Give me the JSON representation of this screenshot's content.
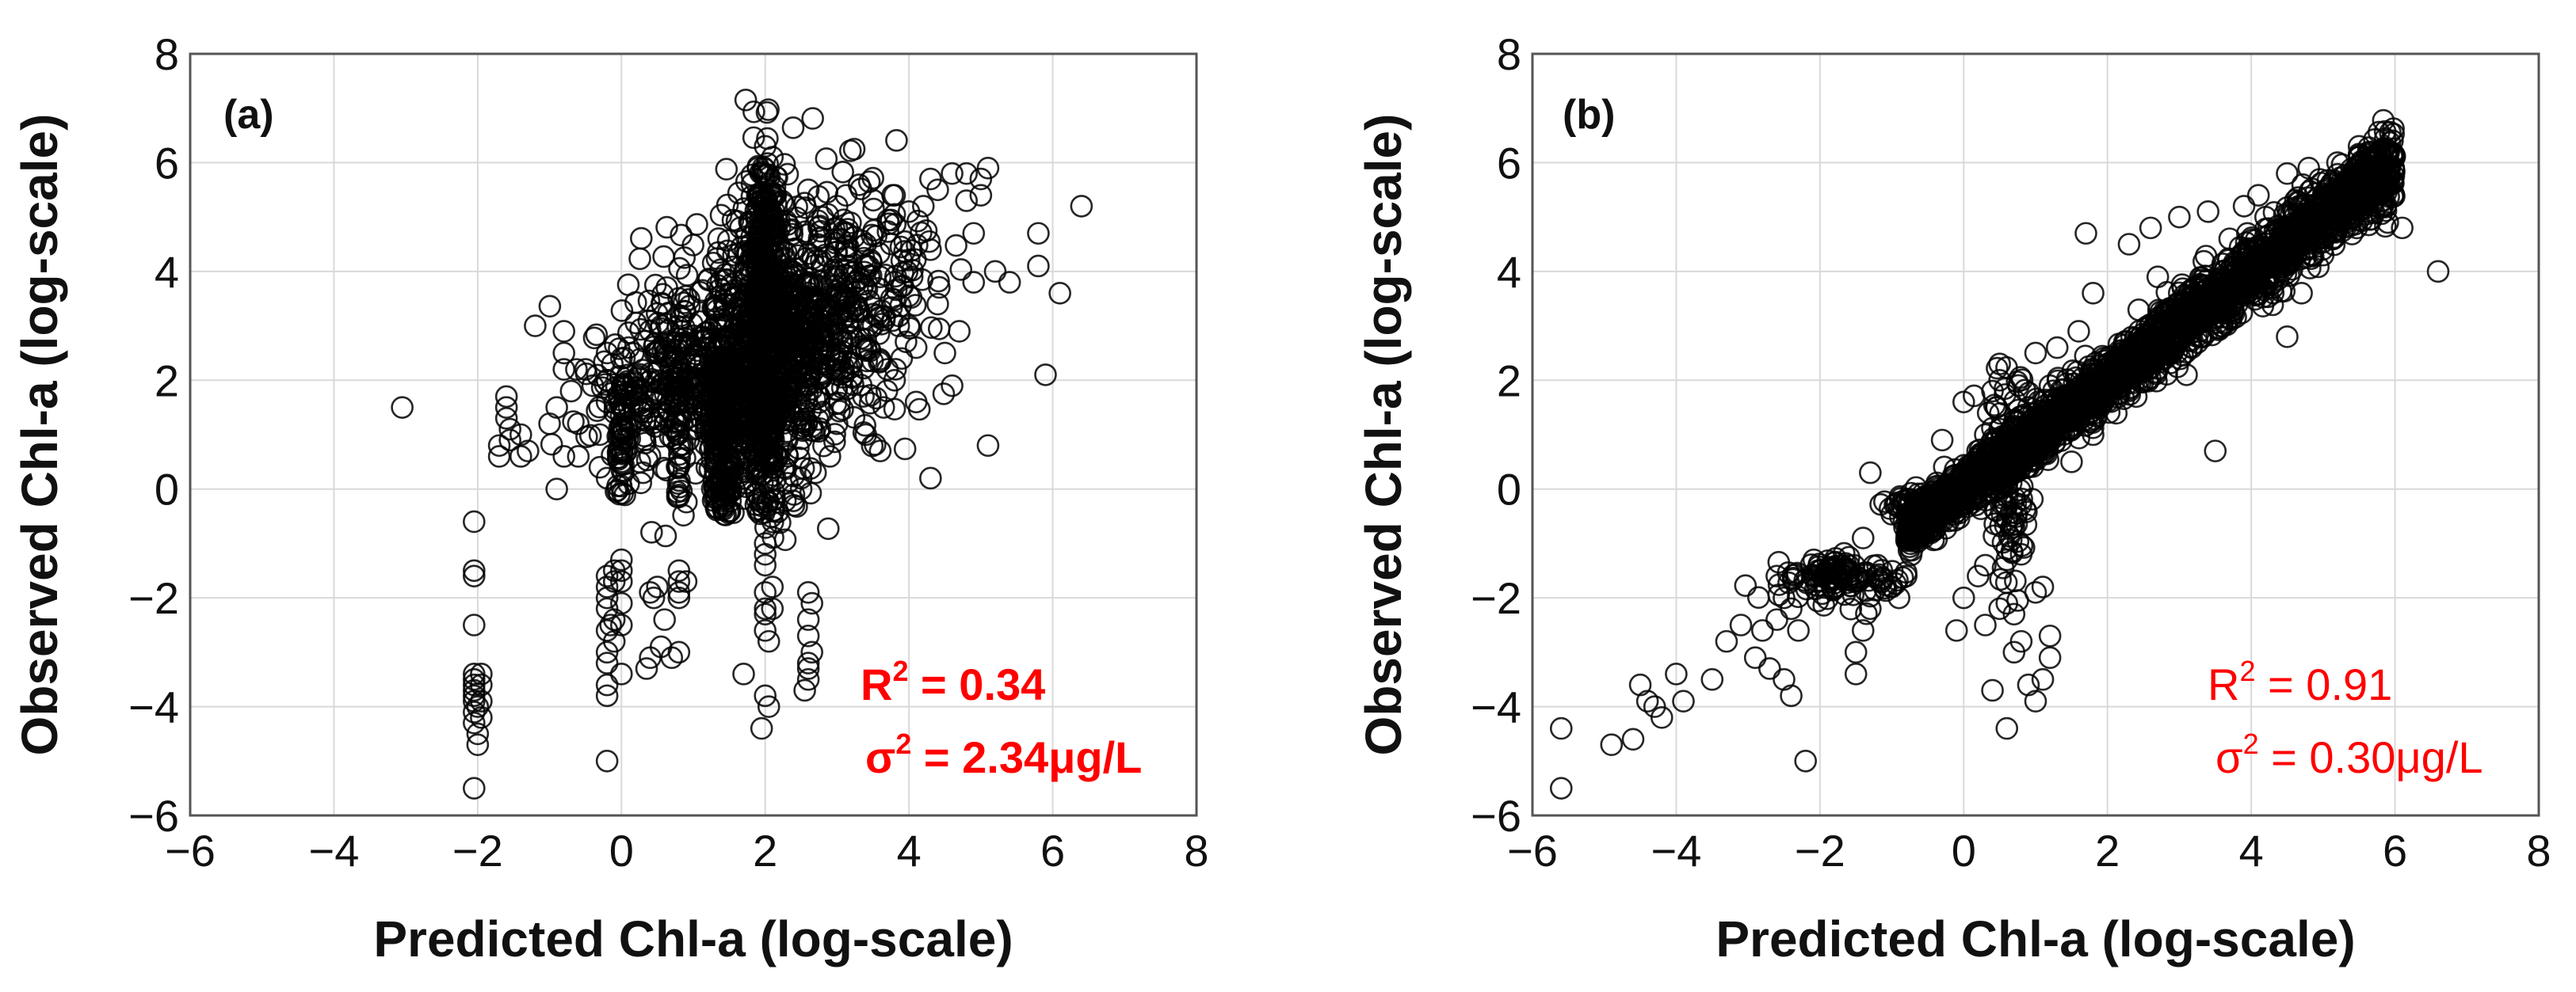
{
  "chart_data": [
    {
      "type": "scatter",
      "panel_label": "(a)",
      "xlabel": "Predicted Chl-a (log-scale)",
      "ylabel": "Observed Chl-a (log-scale)",
      "xlim": [
        -6,
        8
      ],
      "ylim": [
        -6,
        8
      ],
      "xticks": [
        -6,
        -4,
        -2,
        0,
        2,
        4,
        6,
        8
      ],
      "yticks": [
        -6,
        -4,
        -2,
        0,
        2,
        4,
        6,
        8
      ],
      "grid": true,
      "marker": "open-circle",
      "r2_label": "R",
      "r2_value": " = 0.34",
      "sigma_label": "σ",
      "sigma_value": " = 2.34μg/L",
      "sup": "2",
      "annotation_style": "bold",
      "annotation_color": "#ff0000",
      "approx_point_count": 4000,
      "points": [
        [
          -3.05,
          1.5
        ],
        [
          -2.05,
          -0.6
        ],
        [
          -2.05,
          -1.5
        ],
        [
          -2.05,
          -1.6
        ],
        [
          -2.05,
          -2.5
        ],
        [
          -2.05,
          -3.4
        ],
        [
          -2.05,
          -3.6
        ],
        [
          -2.05,
          -3.8
        ],
        [
          -2.0,
          -4.0
        ],
        [
          -2.05,
          -4.3
        ],
        [
          -2.0,
          -4.5
        ],
        [
          -2.0,
          -4.7
        ],
        [
          -2.05,
          -5.5
        ],
        [
          -2.05,
          -4.1
        ],
        [
          -2.05,
          -3.9
        ],
        [
          -2.05,
          -3.7
        ],
        [
          -2.05,
          -3.5
        ],
        [
          -1.95,
          -4.2
        ],
        [
          -1.95,
          -3.9
        ],
        [
          -1.95,
          -3.6
        ],
        [
          -1.95,
          -3.4
        ],
        [
          -1.6,
          1.7
        ],
        [
          -1.6,
          1.5
        ],
        [
          -1.6,
          1.3
        ],
        [
          -1.55,
          1.1
        ],
        [
          -1.55,
          0.9
        ],
        [
          -1.7,
          0.6
        ],
        [
          -1.7,
          0.8
        ],
        [
          -1.4,
          0.6
        ],
        [
          -1.3,
          0.7
        ],
        [
          -1.4,
          1.0
        ],
        [
          -1.0,
          1.2
        ],
        [
          -0.9,
          1.5
        ],
        [
          -0.8,
          2.2
        ],
        [
          -0.8,
          2.5
        ],
        [
          -0.8,
          2.9
        ],
        [
          -0.7,
          1.8
        ],
        [
          -0.6,
          1.2
        ],
        [
          -0.9,
          0.0
        ],
        [
          -0.8,
          0.6
        ],
        [
          -0.6,
          0.6
        ],
        [
          -1.2,
          3.0
        ],
        [
          -0.5,
          2.2
        ],
        [
          -0.4,
          1.9
        ],
        [
          -0.2,
          2.5
        ],
        [
          -0.2,
          2.0
        ],
        [
          -0.2,
          1.6
        ],
        [
          -0.3,
          1.0
        ],
        [
          -0.3,
          0.4
        ],
        [
          0.0,
          2.4
        ],
        [
          0.0,
          1.0
        ],
        [
          0.0,
          0.5
        ],
        [
          0.1,
          2.6
        ],
        [
          0.2,
          1.6
        ],
        [
          0.3,
          0.3
        ],
        [
          0.4,
          1.3
        ],
        [
          0.1,
          0.1
        ],
        [
          -0.2,
          0.2
        ],
        [
          -0.2,
          -1.6
        ],
        [
          -0.2,
          -1.8
        ],
        [
          -0.2,
          -2.0
        ],
        [
          -0.2,
          -2.2
        ],
        [
          -0.15,
          -2.5
        ],
        [
          -0.2,
          -2.6
        ],
        [
          -0.2,
          -3.0
        ],
        [
          -0.2,
          -3.2
        ],
        [
          -0.2,
          -3.6
        ],
        [
          -0.2,
          -3.8
        ],
        [
          -0.2,
          -5.0
        ],
        [
          -0.1,
          -1.5
        ],
        [
          -0.1,
          -1.7
        ],
        [
          -0.1,
          -2.4
        ],
        [
          -0.1,
          -2.8
        ],
        [
          0.0,
          -1.3
        ],
        [
          0.0,
          -1.5
        ],
        [
          0.0,
          -1.7
        ],
        [
          0.0,
          -2.1
        ],
        [
          0.0,
          -2.5
        ],
        [
          0.0,
          -3.4
        ],
        [
          0.4,
          -1.9
        ],
        [
          0.45,
          -2.0
        ],
        [
          0.5,
          -1.8
        ],
        [
          0.35,
          -3.3
        ],
        [
          0.4,
          -3.1
        ],
        [
          0.55,
          -2.9
        ],
        [
          0.8,
          -1.5
        ],
        [
          0.8,
          -1.7
        ],
        [
          0.8,
          -1.9
        ],
        [
          0.8,
          -2.0
        ],
        [
          0.9,
          -1.7
        ],
        [
          0.8,
          -3.0
        ],
        [
          0.7,
          -3.1
        ],
        [
          0.6,
          -2.4
        ],
        [
          1.7,
          -3.4
        ],
        [
          2.0,
          -1.0
        ],
        [
          2.0,
          -1.2
        ],
        [
          2.0,
          -1.4
        ],
        [
          2.0,
          -1.9
        ],
        [
          2.0,
          -2.2
        ],
        [
          2.0,
          -2.3
        ],
        [
          2.0,
          -2.6
        ],
        [
          2.0,
          -3.8
        ],
        [
          1.95,
          -4.4
        ],
        [
          2.05,
          -4.0
        ],
        [
          2.05,
          -2.8
        ],
        [
          2.1,
          -2.2
        ],
        [
          2.1,
          -1.8
        ],
        [
          2.6,
          -1.9
        ],
        [
          2.65,
          -2.1
        ],
        [
          2.6,
          -2.4
        ],
        [
          2.6,
          -2.7
        ],
        [
          2.6,
          -3.2
        ],
        [
          2.6,
          -3.3
        ],
        [
          2.6,
          -3.5
        ],
        [
          2.65,
          -3.0
        ],
        [
          2.55,
          -3.7
        ],
        [
          4.3,
          0.2
        ],
        [
          3.6,
          0.7
        ],
        [
          5.1,
          0.8
        ],
        [
          4.6,
          1.9
        ],
        [
          4.5,
          2.5
        ],
        [
          4.9,
          3.8
        ],
        [
          5.2,
          4.0
        ],
        [
          5.4,
          3.8
        ],
        [
          5.8,
          4.1
        ],
        [
          6.1,
          3.6
        ],
        [
          5.9,
          2.1
        ],
        [
          6.4,
          5.2
        ],
        [
          5.8,
          4.7
        ],
        [
          4.3,
          5.7
        ],
        [
          4.6,
          5.8
        ],
        [
          4.8,
          5.8
        ],
        [
          5.0,
          5.7
        ],
        [
          5.0,
          5.4
        ],
        [
          5.1,
          5.9
        ],
        [
          4.4,
          5.5
        ],
        [
          4.2,
          5.2
        ],
        [
          4.8,
          5.3
        ],
        [
          4.9,
          4.7
        ],
        [
          4.0,
          5.1
        ],
        [
          3.8,
          5.4
        ],
        [
          2.0,
          6.3
        ],
        [
          1.9,
          5.9
        ],
        [
          2.1,
          6.1
        ],
        [
          3.3,
          3.3
        ],
        [
          3.5,
          3.0
        ],
        [
          3.7,
          2.2
        ],
        [
          3.2,
          2.8
        ],
        [
          3.8,
          2.0
        ],
        [
          4.1,
          2.6
        ],
        [
          4.0,
          3.0
        ],
        [
          4.1,
          1.6
        ],
        [
          3.4,
          1.0
        ],
        [
          2.9,
          0.6
        ],
        [
          3.0,
          1.2
        ],
        [
          2.5,
          0.2
        ],
        [
          2.7,
          0.3
        ],
        [
          2.4,
          -0.1
        ],
        [
          2.4,
          -0.3
        ],
        [
          2.5,
          0.0
        ],
        [
          3.4,
          4.5
        ],
        [
          3.9,
          4.2
        ],
        [
          3.6,
          3.9
        ],
        [
          3.1,
          4.7
        ],
        [
          3.0,
          5.2
        ],
        [
          2.6,
          5.5
        ],
        [
          2.8,
          5.0
        ],
        [
          4.3,
          4.4
        ],
        [
          4.4,
          3.4
        ],
        [
          4.7,
          2.9
        ]
      ],
      "dense_clouds": [
        {
          "cx": 2.0,
          "cy": 3.0,
          "sx": 0.25,
          "sy": 1.5,
          "n": 320
        },
        {
          "cx": 2.3,
          "cy": 2.8,
          "sx": 0.5,
          "sy": 1.0,
          "n": 320
        },
        {
          "cx": 1.6,
          "cy": 1.8,
          "sx": 0.55,
          "sy": 1.1,
          "n": 300
        },
        {
          "cx": 1.2,
          "cy": 2.4,
          "sx": 0.7,
          "sy": 0.9,
          "n": 200
        },
        {
          "cx": 2.9,
          "cy": 3.1,
          "sx": 0.6,
          "sy": 1.1,
          "n": 220
        },
        {
          "cx": 0.4,
          "cy": 1.6,
          "sx": 0.5,
          "sy": 0.6,
          "n": 110
        },
        {
          "cx": 3.6,
          "cy": 4.2,
          "sx": 0.6,
          "sy": 0.8,
          "n": 90
        }
      ],
      "columns": [
        {
          "x": 1.3,
          "y0": -0.5,
          "y1": 2.5,
          "n": 70
        },
        {
          "x": 1.4,
          "y0": -0.5,
          "y1": 2.5,
          "n": 70
        },
        {
          "x": 1.5,
          "y0": -0.5,
          "y1": 2.5,
          "n": 70
        },
        {
          "x": 1.9,
          "y0": -0.5,
          "y1": 5.5,
          "n": 110
        },
        {
          "x": 2.0,
          "y0": -0.5,
          "y1": 6.0,
          "n": 110
        },
        {
          "x": 2.1,
          "y0": -0.5,
          "y1": 5.5,
          "n": 100
        },
        {
          "x": 0.0,
          "y0": -0.2,
          "y1": 2.0,
          "n": 40
        },
        {
          "x": 0.8,
          "y0": -0.2,
          "y1": 2.4,
          "n": 40
        }
      ]
    },
    {
      "type": "scatter",
      "panel_label": "(b)",
      "xlabel": "Predicted Chl-a (log-scale)",
      "ylabel": "Observed Chl-a (log-scale)",
      "xlim": [
        -6,
        8
      ],
      "ylim": [
        -6,
        8
      ],
      "xticks": [
        -6,
        -4,
        -2,
        0,
        2,
        4,
        6,
        8
      ],
      "yticks": [
        -6,
        -4,
        -2,
        0,
        2,
        4,
        6,
        8
      ],
      "grid": true,
      "marker": "open-circle",
      "r2_label": "R",
      "r2_value": " = 0.91",
      "sigma_label": "σ",
      "sigma_value": " = 0.30μg/L",
      "sup": "2",
      "annotation_style": "regular",
      "annotation_color": "#ff0000",
      "approx_point_count": 4000,
      "points": [
        [
          -5.6,
          -4.4
        ],
        [
          -5.6,
          -5.5
        ],
        [
          -4.9,
          -4.7
        ],
        [
          -4.6,
          -4.6
        ],
        [
          -4.5,
          -3.6
        ],
        [
          -4.4,
          -3.9
        ],
        [
          -4.3,
          -4.0
        ],
        [
          -4.2,
          -4.2
        ],
        [
          -4.0,
          -3.4
        ],
        [
          -3.9,
          -3.9
        ],
        [
          -3.5,
          -3.5
        ],
        [
          -3.3,
          -2.8
        ],
        [
          -3.1,
          -2.5
        ],
        [
          -2.9,
          -3.1
        ],
        [
          -2.8,
          -2.6
        ],
        [
          -2.7,
          -3.3
        ],
        [
          -2.6,
          -2.4
        ],
        [
          -2.5,
          -3.5
        ],
        [
          -2.4,
          -3.8
        ],
        [
          -2.2,
          -5.0
        ],
        [
          -2.6,
          -1.6
        ],
        [
          -2.5,
          -2.0
        ],
        [
          -2.4,
          -2.2
        ],
        [
          -2.3,
          -2.6
        ],
        [
          -1.5,
          -3.4
        ],
        [
          -1.5,
          -3.0
        ],
        [
          -1.4,
          -2.6
        ],
        [
          -1.3,
          -2.2
        ],
        [
          -1.4,
          -0.9
        ],
        [
          -1.3,
          0.3
        ],
        [
          -1.2,
          -1.4
        ],
        [
          -1.0,
          -1.8
        ],
        [
          -0.9,
          -2.0
        ],
        [
          -0.8,
          -1.6
        ],
        [
          -0.1,
          -2.6
        ],
        [
          0.0,
          -2.0
        ],
        [
          0.2,
          -1.6
        ],
        [
          0.3,
          -1.4
        ],
        [
          0.3,
          -2.5
        ],
        [
          0.4,
          -3.7
        ],
        [
          0.5,
          -2.2
        ],
        [
          0.6,
          -2.1
        ],
        [
          0.7,
          -2.3
        ],
        [
          0.8,
          -2.8
        ],
        [
          0.7,
          -3.0
        ],
        [
          0.6,
          -4.4
        ],
        [
          0.9,
          -3.6
        ],
        [
          1.0,
          -3.9
        ],
        [
          1.1,
          -3.5
        ],
        [
          1.2,
          -3.1
        ],
        [
          1.2,
          -2.7
        ],
        [
          1.0,
          -1.9
        ],
        [
          1.1,
          -1.8
        ],
        [
          0.6,
          -1.3
        ],
        [
          0.6,
          -1.1
        ],
        [
          0.7,
          -0.7
        ],
        [
          0.8,
          -1.2
        ],
        [
          0.4,
          1.8
        ],
        [
          0.45,
          1.5
        ],
        [
          0.5,
          2.3
        ],
        [
          0.5,
          2.0
        ],
        [
          0.5,
          1.1
        ],
        [
          0.3,
          1.0
        ],
        [
          -0.3,
          0.9
        ],
        [
          0.0,
          1.6
        ],
        [
          0.2,
          0.5
        ],
        [
          0.9,
          1.5
        ],
        [
          1.2,
          1.9
        ],
        [
          1.0,
          2.5
        ],
        [
          1.3,
          2.6
        ],
        [
          1.6,
          2.9
        ],
        [
          1.7,
          4.7
        ],
        [
          2.3,
          4.5
        ],
        [
          2.6,
          4.8
        ],
        [
          3.0,
          5.0
        ],
        [
          3.4,
          5.1
        ],
        [
          3.9,
          5.2
        ],
        [
          4.1,
          5.4
        ],
        [
          4.5,
          5.8
        ],
        [
          4.8,
          5.9
        ],
        [
          5.2,
          6.0
        ],
        [
          5.5,
          6.1
        ],
        [
          5.5,
          6.3
        ],
        [
          5.9,
          4.9
        ],
        [
          6.1,
          4.8
        ],
        [
          6.6,
          4.0
        ],
        [
          5.4,
          5.7
        ],
        [
          4.7,
          3.6
        ],
        [
          4.3,
          3.7
        ],
        [
          4.5,
          2.8
        ],
        [
          3.5,
          0.7
        ],
        [
          3.3,
          2.8
        ],
        [
          3.1,
          2.1
        ],
        [
          2.9,
          2.5
        ],
        [
          2.4,
          1.7
        ],
        [
          1.8,
          1.0
        ],
        [
          1.5,
          0.5
        ],
        [
          1.8,
          3.6
        ],
        [
          2.7,
          3.9
        ],
        [
          3.7,
          4.6
        ],
        [
          4.2,
          5.0
        ],
        [
          5.0,
          4.3
        ],
        [
          5.6,
          5.1
        ]
      ],
      "dense_clouds": [
        {
          "cx": -1.8,
          "cy": -1.6,
          "sx": 0.4,
          "sy": 0.2,
          "n": 120
        },
        {
          "cx": -0.6,
          "cy": -0.3,
          "sx": 0.25,
          "sy": 0.15,
          "n": 80
        },
        {
          "cx": 0.6,
          "cy": 0.4,
          "sx": 0.15,
          "sy": 0.9,
          "n": 120
        }
      ],
      "band": {
        "x0": -0.8,
        "x1": 6.0,
        "slope": 1.0,
        "intercept": 0.0,
        "sd": 0.35,
        "n": 2400
      },
      "columns": []
    }
  ]
}
